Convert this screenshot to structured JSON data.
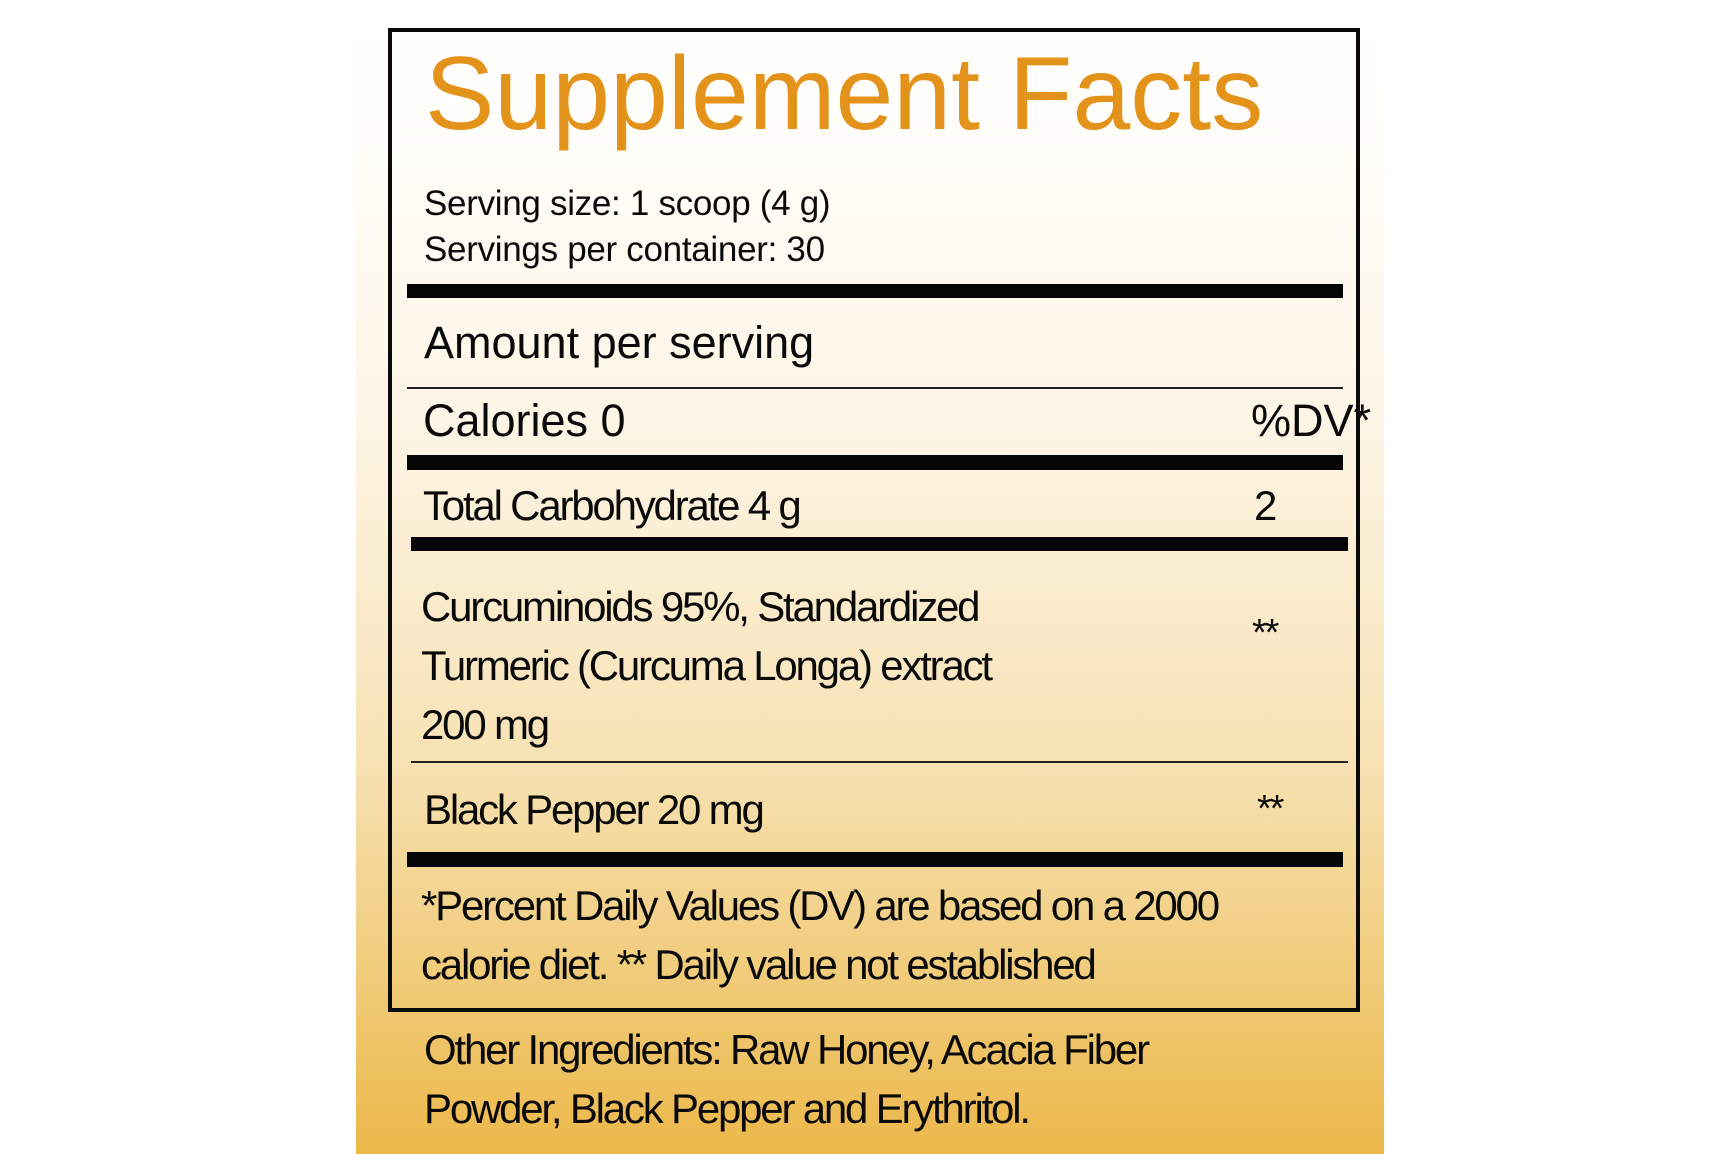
{
  "label": {
    "title": "Supplement Facts",
    "serving_size": "Serving size: 1 scoop (4 g)",
    "servings_per_container": "Servings per container: 30",
    "amount_per_serving": "Amount per serving",
    "calories": "Calories 0",
    "dv_header": "%DV*",
    "rows": [
      {
        "name_lines": [
          "Total Carbohydrate  4 g"
        ],
        "dv": "2"
      },
      {
        "name_lines": [
          "Curcuminoids 95%, Standardized",
          "Turmeric (Curcuma Longa) extract",
          "200 mg"
        ],
        "dv": "**"
      },
      {
        "name_lines": [
          "Black Pepper 20 mg"
        ],
        "dv": "**"
      }
    ],
    "footnote_lines": [
      "*Percent Daily Values (DV) are based on a 2000",
      "calorie diet. ** Daily value not established"
    ],
    "other_ingredients_lines": [
      "Other Ingredients:  Raw Honey, Acacia Fiber",
      "Powder, Black Pepper and Erythritol."
    ]
  },
  "colors": {
    "title": "#e3921a",
    "background_bottom": "#ecb84a",
    "text": "#0a0a0a"
  }
}
